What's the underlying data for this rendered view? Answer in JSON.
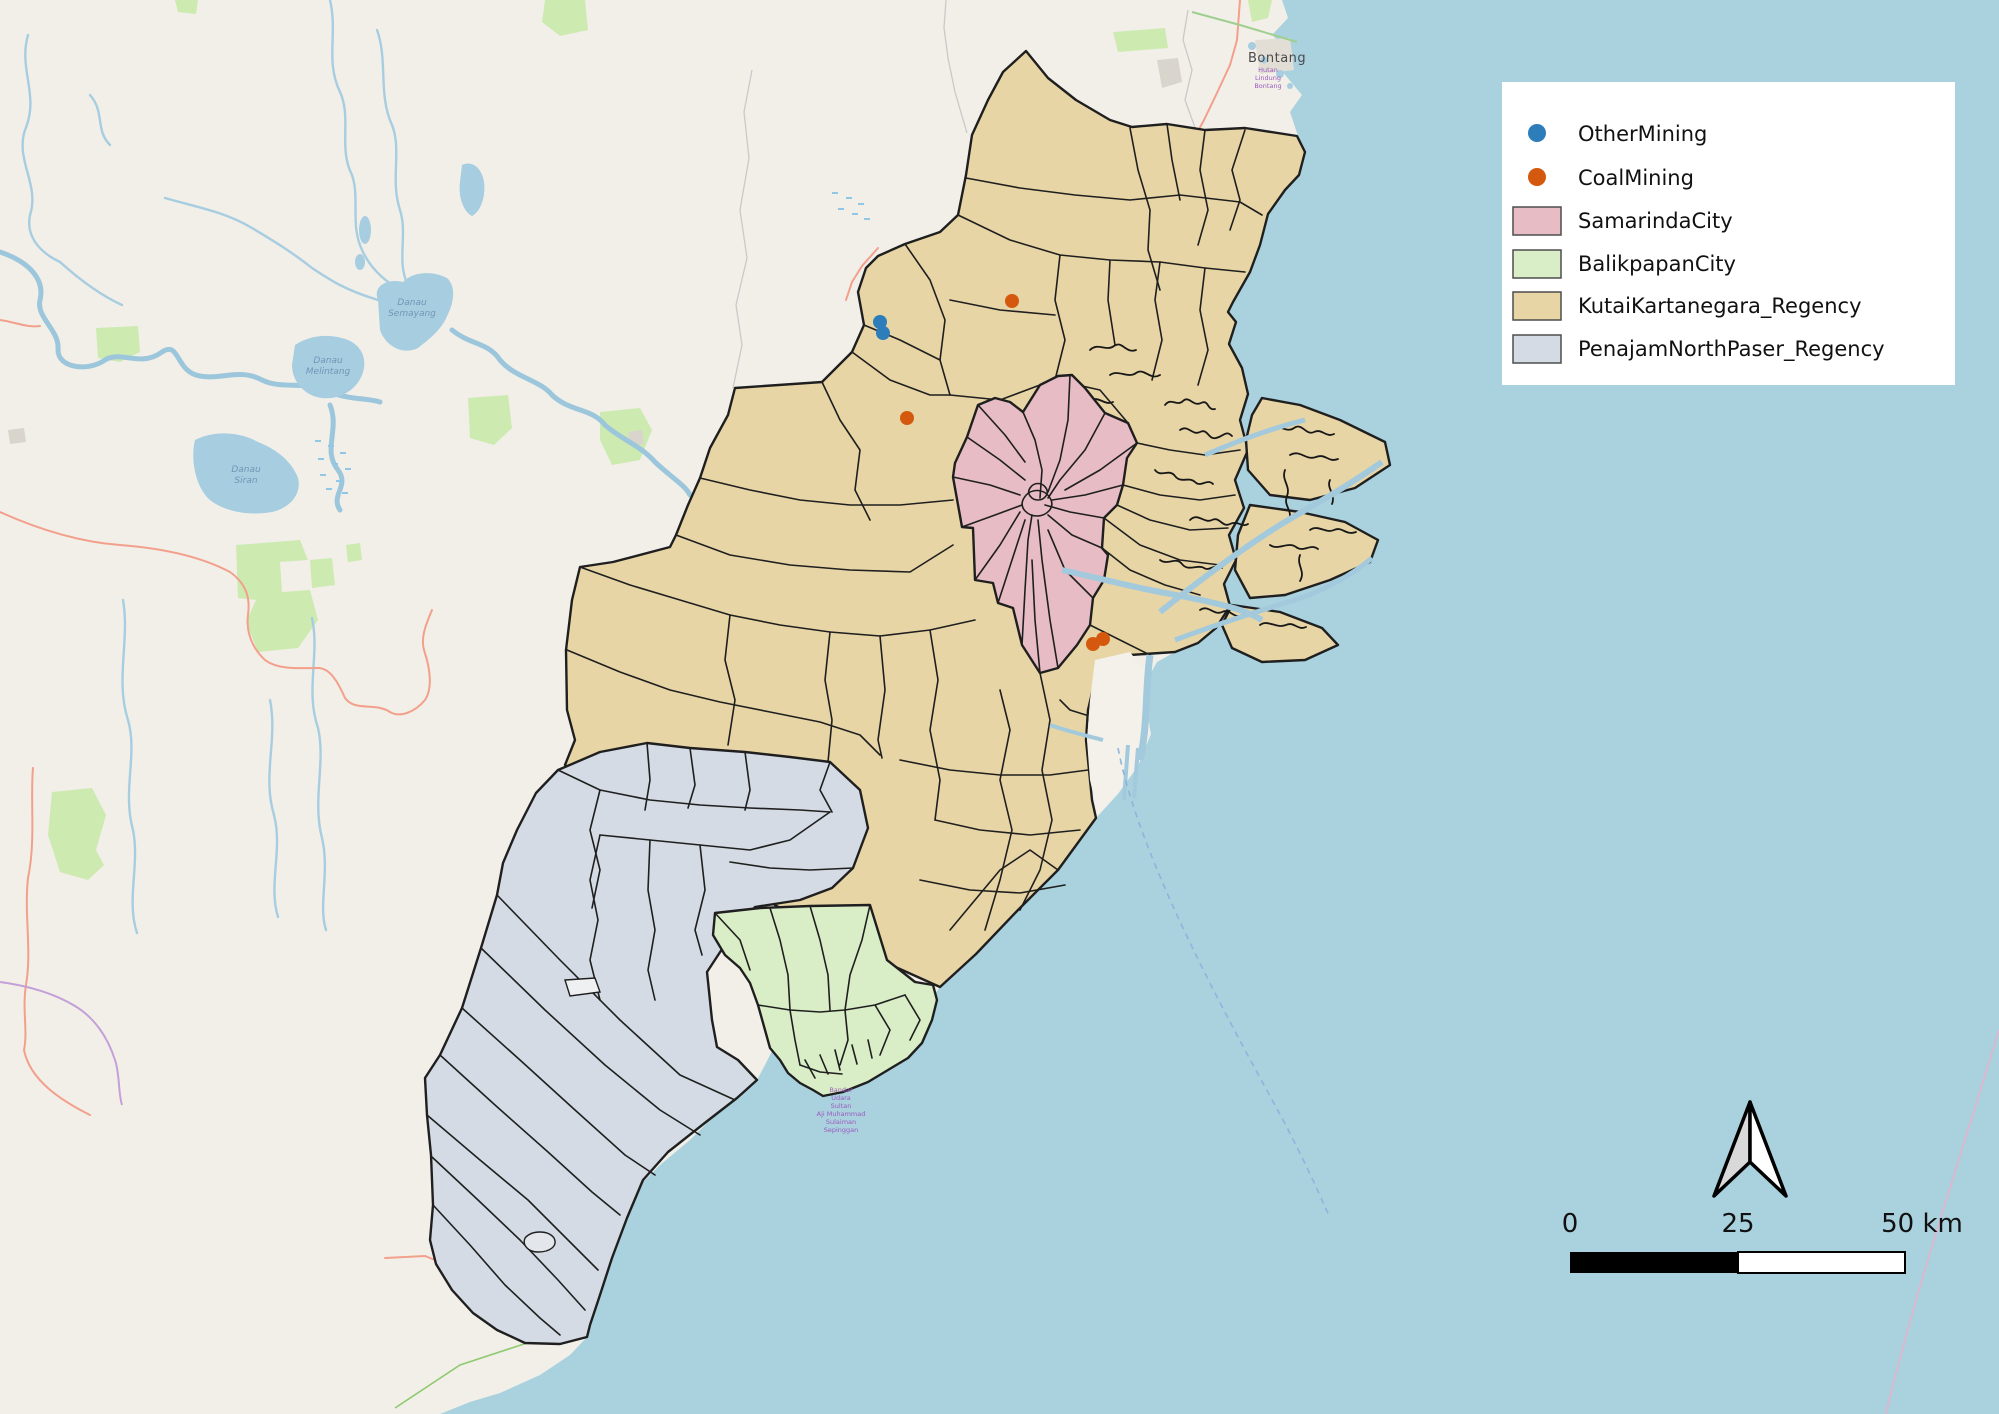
{
  "palette": {
    "sea": "#a9d1de",
    "land": "#f2efe9",
    "water": "#a7cde0",
    "forest": "#cdeab0",
    "road": "#f2a08b",
    "outline": "#1f1f1f"
  },
  "regions": {
    "kutai": {
      "name": "KutaiKartanegara_Regency",
      "color": "#e8d5a5"
    },
    "penajam": {
      "name": "PenajamNorthPaser_Regency",
      "color": "#d4dbe4"
    },
    "balikpapan": {
      "name": "BalikpapanCity",
      "color": "#d9edc6"
    },
    "samarinda": {
      "name": "SamarindaCity",
      "color": "#e7bcc4"
    }
  },
  "mining": {
    "other_mining": {
      "label": "OtherMining",
      "color": "#2d7dbb",
      "points": [
        [
          880,
          322
        ],
        [
          883,
          333
        ]
      ]
    },
    "coal_mining": {
      "label": "CoalMining",
      "color": "#d4590e",
      "points": [
        [
          1012,
          301
        ],
        [
          907,
          418
        ],
        [
          1093,
          644
        ],
        [
          1103,
          639
        ]
      ]
    }
  },
  "legend": {
    "items": [
      {
        "label": "OtherMining",
        "marker": "point",
        "color": "#2d7dbb"
      },
      {
        "label": "CoalMining",
        "marker": "point",
        "color": "#d4590e"
      },
      {
        "label": "SamarindaCity",
        "marker": "fill",
        "color": "#e7bcc4"
      },
      {
        "label": "BalikpapanCity",
        "marker": "fill",
        "color": "#d9edc6"
      },
      {
        "label": "KutaiKartanegara_Regency",
        "marker": "fill",
        "color": "#e8d5a5"
      },
      {
        "label": "PenajamNorthPaser_Regency",
        "marker": "fill",
        "color": "#d4dbe4"
      }
    ]
  },
  "scalebar": {
    "ticks": [
      "0",
      "25",
      "50 km"
    ]
  },
  "labels": {
    "city": "Bontang",
    "city_sub": [
      "Hutan",
      "Lindung",
      "Bontang"
    ],
    "lakes": [
      {
        "lines": [
          "Danau",
          "Semayang"
        ]
      },
      {
        "lines": [
          "Danau",
          "Melintang"
        ]
      },
      {
        "lines": [
          "Danau",
          "Siran"
        ]
      }
    ],
    "airport": [
      "Bandar",
      "Udara",
      "Sultan",
      "Aji Muhammad",
      "Sulaiman",
      "Sepinggan"
    ]
  }
}
